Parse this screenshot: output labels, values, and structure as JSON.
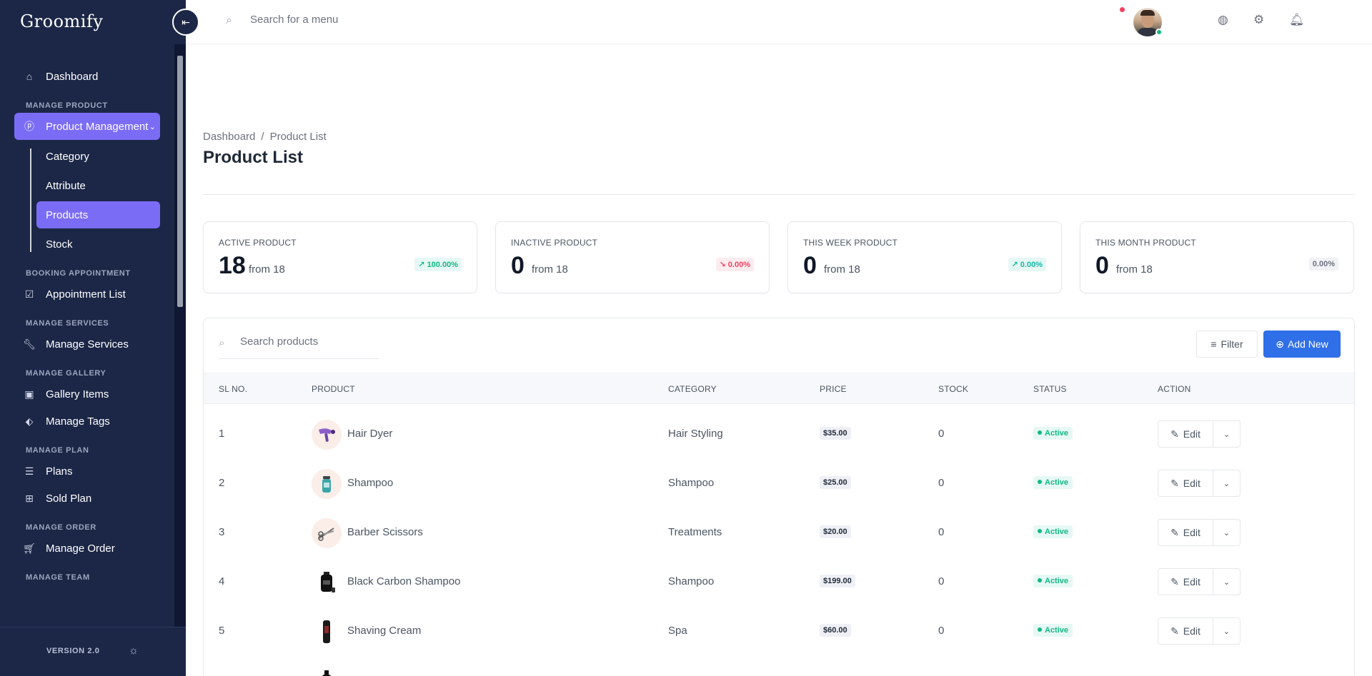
{
  "app": {
    "logo": "Groomify"
  },
  "sidebar": {
    "collapse_icon": "collapse-left-icon",
    "top_item": {
      "label": "Dashboard",
      "icon": "home-icon"
    },
    "sections": {
      "manage_product": "MANAGE PRODUCT",
      "booking": "BOOKING APPOINTMENT",
      "services": "MANAGE SERVICES",
      "gallery": "MANAGE GALLERY",
      "plan": "MANAGE PLAN",
      "order": "MANAGE ORDER",
      "team": "MANAGE TEAM"
    },
    "product_management": {
      "label": "Product Management",
      "icon": "product-icon",
      "active": true
    },
    "sub_items": [
      "Category",
      "Attribute",
      "Products",
      "Stock"
    ],
    "items": {
      "appointment_list": "Appointment List",
      "manage_services": "Manage Services",
      "gallery_items": "Gallery Items",
      "manage_tags": "Manage Tags",
      "plans": "Plans",
      "sold_plan": "Sold Plan",
      "manage_order": "Manage Order"
    },
    "version": "VERSION 2.0",
    "accent_color": "#7b6cf6"
  },
  "topbar": {
    "search_placeholder": "Search for a menu",
    "icons": [
      "globe-icon",
      "gear-icon",
      "bell-icon",
      "avatar"
    ]
  },
  "breadcrumb": {
    "root": "Dashboard",
    "separator": "/",
    "current": "Product List"
  },
  "page": {
    "title": "Product List"
  },
  "stats": [
    {
      "label": "ACTIVE PRODUCT",
      "value": "18",
      "from": "from 18",
      "change": "100.00%",
      "trend": "up",
      "color": "#10b981"
    },
    {
      "label": "INACTIVE PRODUCT",
      "value": "0",
      "from": "from 18",
      "change": "0.00%",
      "trend": "down",
      "color": "#f43f5e"
    },
    {
      "label": "THIS WEEK PRODUCT",
      "value": "0",
      "from": "from 18",
      "change": "0.00%",
      "trend": "up",
      "color": "#14b8a6"
    },
    {
      "label": "THIS MONTH PRODUCT",
      "value": "0",
      "from": "from 18",
      "change": "0.00%",
      "trend": "none",
      "color": "#6b7280"
    }
  ],
  "table": {
    "search_placeholder": "Search products",
    "filter_label": "Filter",
    "add_label": "Add New",
    "add_color": "#2f6fe8",
    "columns": [
      "SL NO.",
      "PRODUCT",
      "CATEGORY",
      "PRICE",
      "STOCK",
      "STATUS",
      "ACTION"
    ],
    "edit_label": "Edit",
    "rows": [
      {
        "sl": "1",
        "product": "Hair Dyer",
        "category": "Hair Styling",
        "price": "$35.00",
        "stock": "0",
        "status": "Active"
      },
      {
        "sl": "2",
        "product": "Shampoo",
        "category": "Shampoo",
        "price": "$25.00",
        "stock": "0",
        "status": "Active"
      },
      {
        "sl": "3",
        "product": "Barber Scissors",
        "category": "Treatments",
        "price": "$20.00",
        "stock": "0",
        "status": "Active"
      },
      {
        "sl": "4",
        "product": "Black Carbon Shampoo",
        "category": "Shampoo",
        "price": "$199.00",
        "stock": "0",
        "status": "Active"
      },
      {
        "sl": "5",
        "product": "Shaving Cream",
        "category": "Spa",
        "price": "$60.00",
        "stock": "0",
        "status": "Active"
      }
    ]
  }
}
